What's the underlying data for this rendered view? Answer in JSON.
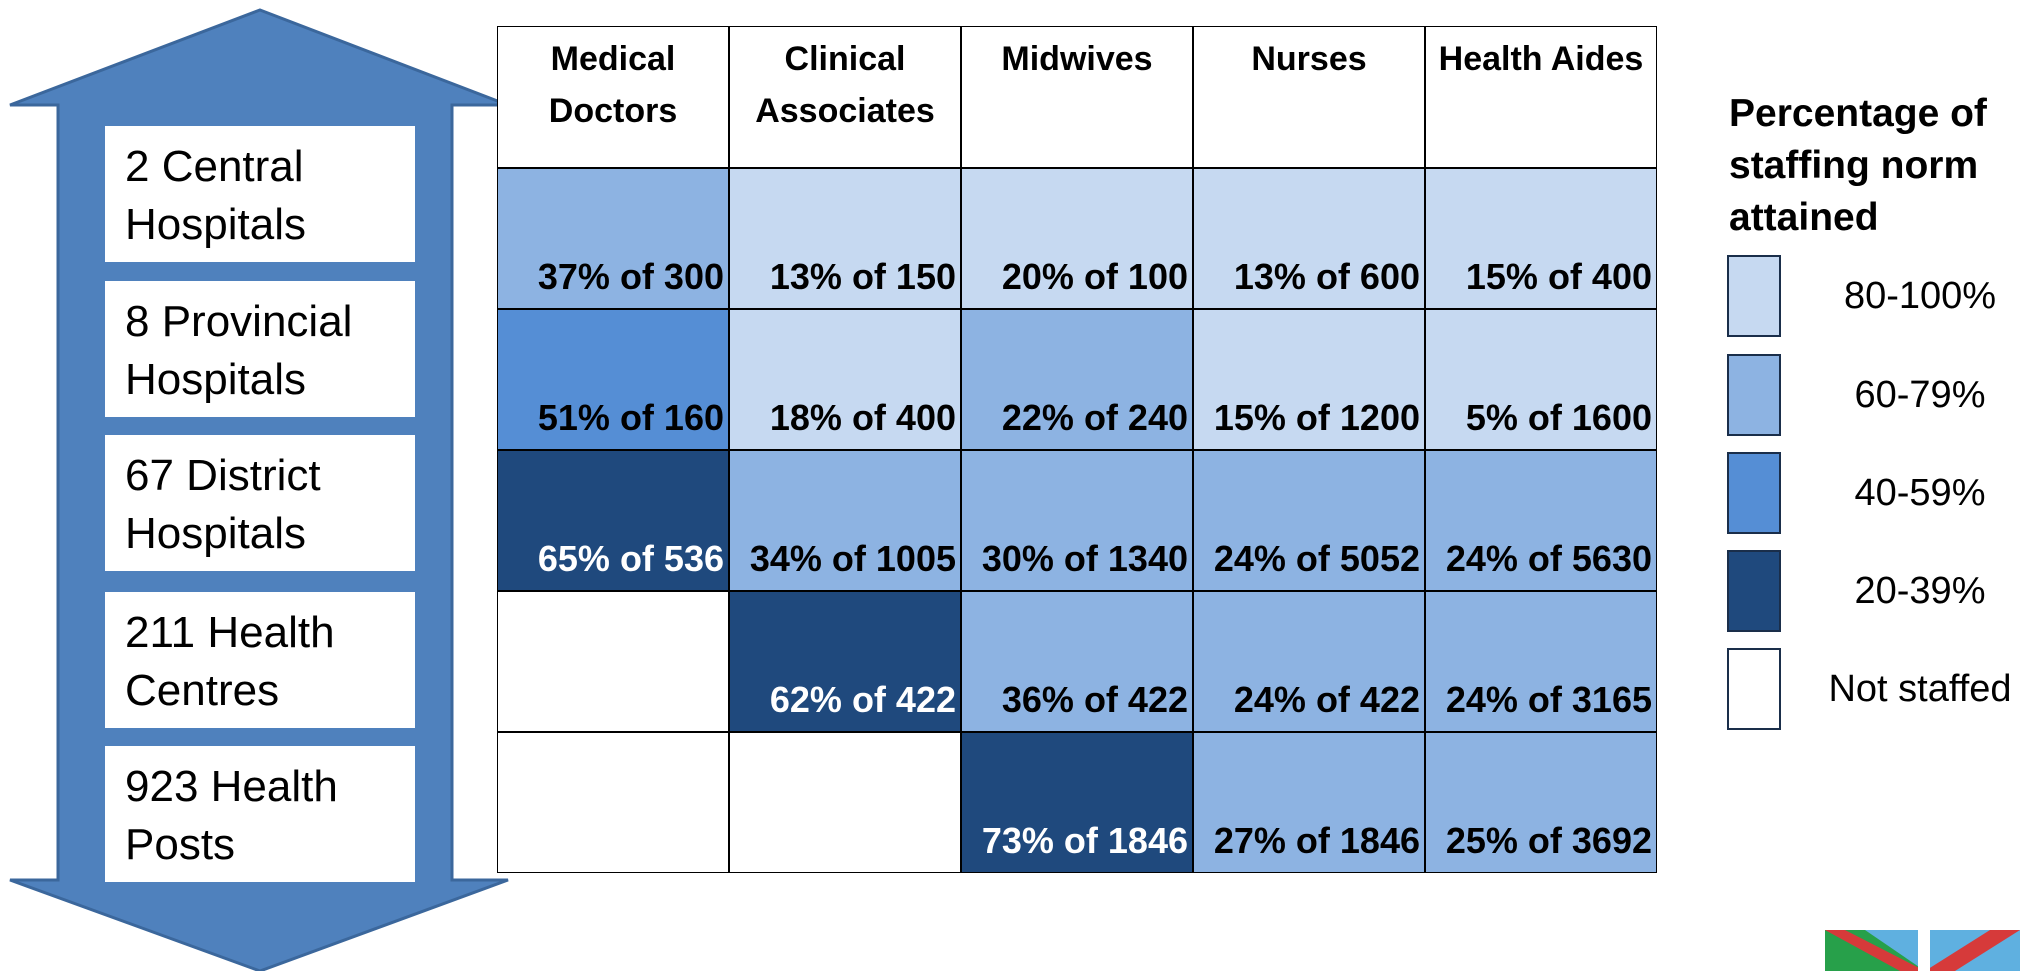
{
  "levels": [
    "2 Central Hospitals",
    "8 Provincial Hospitals",
    "67 District Hospitals",
    "211 Health Centres",
    "923 Health Posts"
  ],
  "table": {
    "headers": [
      "Medical Doctors",
      "Clinical Associates",
      "Midwives",
      "Nurses",
      "Health Aides"
    ],
    "rows": [
      [
        {
          "text": "37% of 300",
          "color": "#8db3e2"
        },
        {
          "text": "13% of 150",
          "color": "#c6d9f1"
        },
        {
          "text": "20% of 100",
          "color": "#c6d9f1"
        },
        {
          "text": "13% of 600",
          "color": "#c6d9f1"
        },
        {
          "text": "15% of 400",
          "color": "#c6d9f1"
        }
      ],
      [
        {
          "text": "51% of 160",
          "color": "#558ed5"
        },
        {
          "text": "18% of 400",
          "color": "#c6d9f1"
        },
        {
          "text": "22% of 240",
          "color": "#8db3e2"
        },
        {
          "text": "15% of 1200",
          "color": "#c6d9f1"
        },
        {
          "text": "5% of 1600",
          "color": "#c6d9f1"
        }
      ],
      [
        {
          "text": "65% of 536",
          "color": "#1f497d"
        },
        {
          "text": "34% of 1005",
          "color": "#8db3e2"
        },
        {
          "text": "30% of 1340",
          "color": "#8db3e2"
        },
        {
          "text": "24% of 5052",
          "color": "#8db3e2"
        },
        {
          "text": "24% of 5630",
          "color": "#8db3e2"
        }
      ],
      [
        {
          "color": "#ffffff"
        },
        {
          "text": "62% of 422",
          "color": "#1f497d"
        },
        {
          "text": "36% of 422",
          "color": "#8db3e2"
        },
        {
          "text": "24% of 422",
          "color": "#8db3e2"
        },
        {
          "text": "24% of 3165",
          "color": "#8db3e2"
        }
      ],
      [
        {
          "color": "#ffffff"
        },
        {
          "color": "#ffffff"
        },
        {
          "text": "73% of 1846",
          "color": "#1f497d"
        },
        {
          "text": "27% of 1846",
          "color": "#8db3e2"
        },
        {
          "text": "25% of 3692",
          "color": "#8db3e2"
        }
      ]
    ]
  },
  "legend": {
    "title": "Percentage of staffing norm attained",
    "items": [
      {
        "label": "80-100%",
        "color": "#c6d9f1"
      },
      {
        "label": "60-79%",
        "color": "#8db3e2"
      },
      {
        "label": "40-59%",
        "color": "#558ed5"
      },
      {
        "label": "20-39%",
        "color": "#1f497d"
      },
      {
        "label": "Not staffed",
        "color": "#ffffff"
      }
    ]
  }
}
